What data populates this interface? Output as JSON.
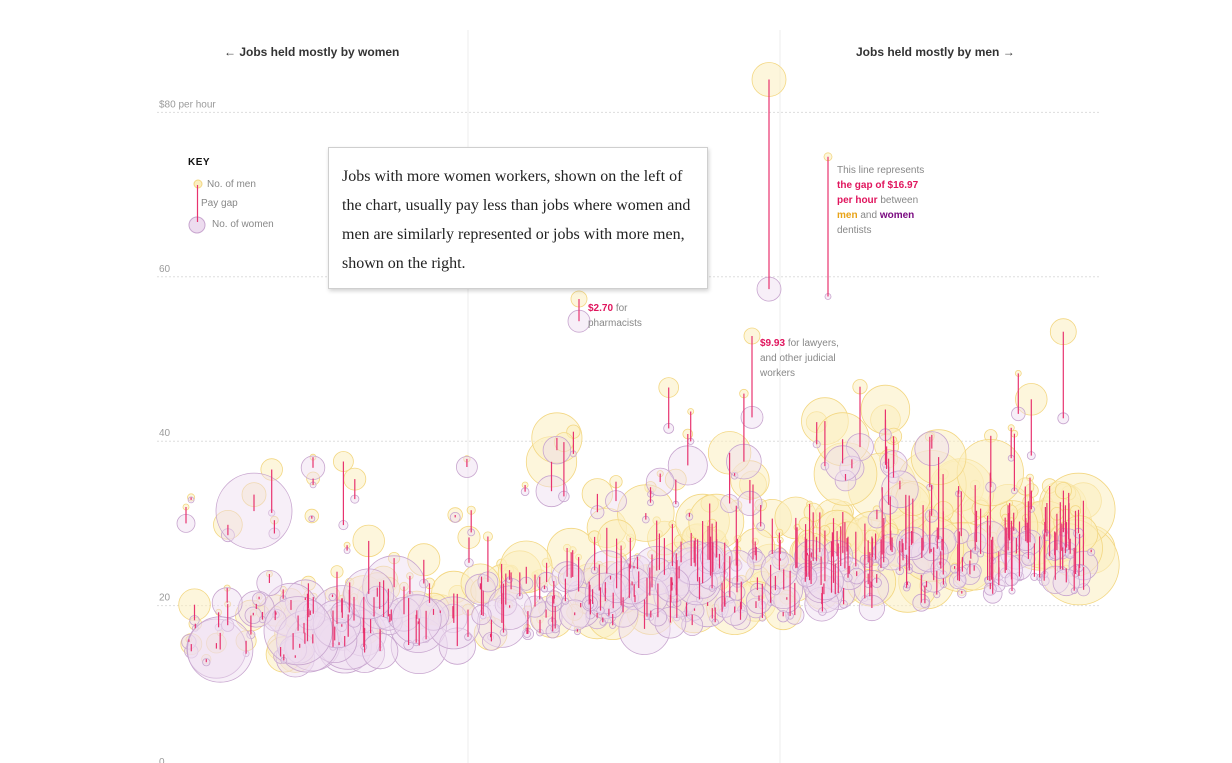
{
  "header": {
    "left_label": "← Jobs held mostly by women",
    "right_label": "Jobs held mostly by men →"
  },
  "key": {
    "title": "KEY",
    "men_label": "No. of men",
    "gap_label": "Pay gap",
    "women_label": "No. of women"
  },
  "callout": {
    "text": "Jobs with more women workers, shown on the left of the chart, usually pay less than jobs where women and men are similarly represented or jobs with more men, shown on the right."
  },
  "annotations": {
    "dentists": {
      "line1": "This line represents",
      "value": "the gap of $16.97",
      "line2b": "per hour",
      "line2c": "between",
      "men": "men",
      "and": "and",
      "women": "women",
      "tail": "dentists"
    },
    "pharmacists": {
      "value": "$2.70",
      "text1": "for",
      "text2": "pharmacists"
    },
    "lawyers": {
      "value": "$9.93",
      "text1": "for lawyers,",
      "text2": "and other judicial",
      "text3": "workers"
    }
  },
  "colors": {
    "men_fill": "#fbefc0",
    "men_stroke": "#f3d782",
    "women_fill": "#eddcef",
    "women_stroke": "#c8a6cf",
    "gap_line": "#e8336f",
    "grid": "#dddddd"
  },
  "chart_data": {
    "type": "scatter",
    "y_axis_labels": [
      "$80 per hour",
      "60",
      "40",
      "20",
      "0"
    ],
    "y_ticks": [
      80,
      60,
      40,
      20,
      0
    ],
    "ylim": [
      0,
      84
    ],
    "x_axis": "share of women in occupation (left = mostly women, right = mostly men)",
    "highlighted": [
      {
        "job": "dentists",
        "men_wage": 74.6,
        "women_wage": 57.6,
        "gap": 16.97
      },
      {
        "job": "pharmacists",
        "men_wage": 57.3,
        "women_wage": 54.6,
        "gap": 2.7
      },
      {
        "job": "lawyers and other judicial workers",
        "men_wage": 52.8,
        "women_wage": 42.9,
        "gap": 9.93
      }
    ],
    "series": [
      {
        "name": "No. of men"
      },
      {
        "name": "No. of women"
      },
      {
        "name": "Pay gap"
      }
    ]
  }
}
